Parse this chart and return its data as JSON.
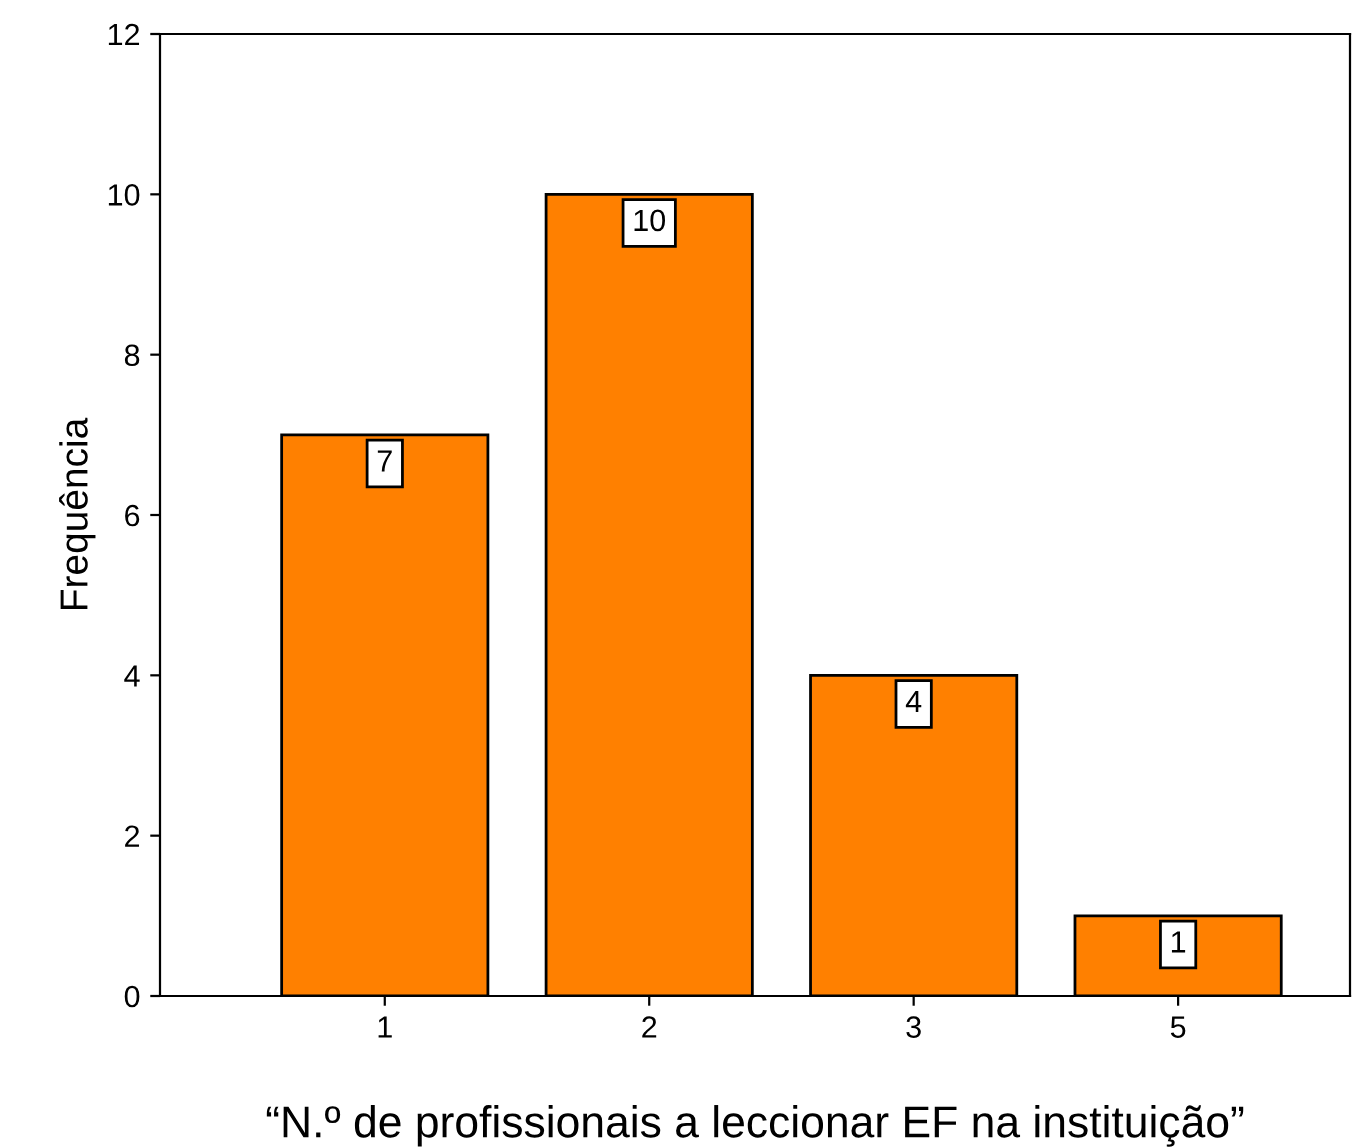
{
  "chart_data": {
    "type": "bar",
    "xlabel": "“N.º de profissionais a leccionar EF na instituição”",
    "ylabel": "Frequência",
    "categories": [
      "1",
      "2",
      "3",
      "5"
    ],
    "values": [
      7,
      10,
      4,
      1
    ],
    "color": "#ff8000",
    "ylim": [
      0,
      12
    ],
    "yticks": [
      0,
      2,
      4,
      6,
      8,
      10,
      12
    ],
    "data_labels": true,
    "grid": false
  }
}
